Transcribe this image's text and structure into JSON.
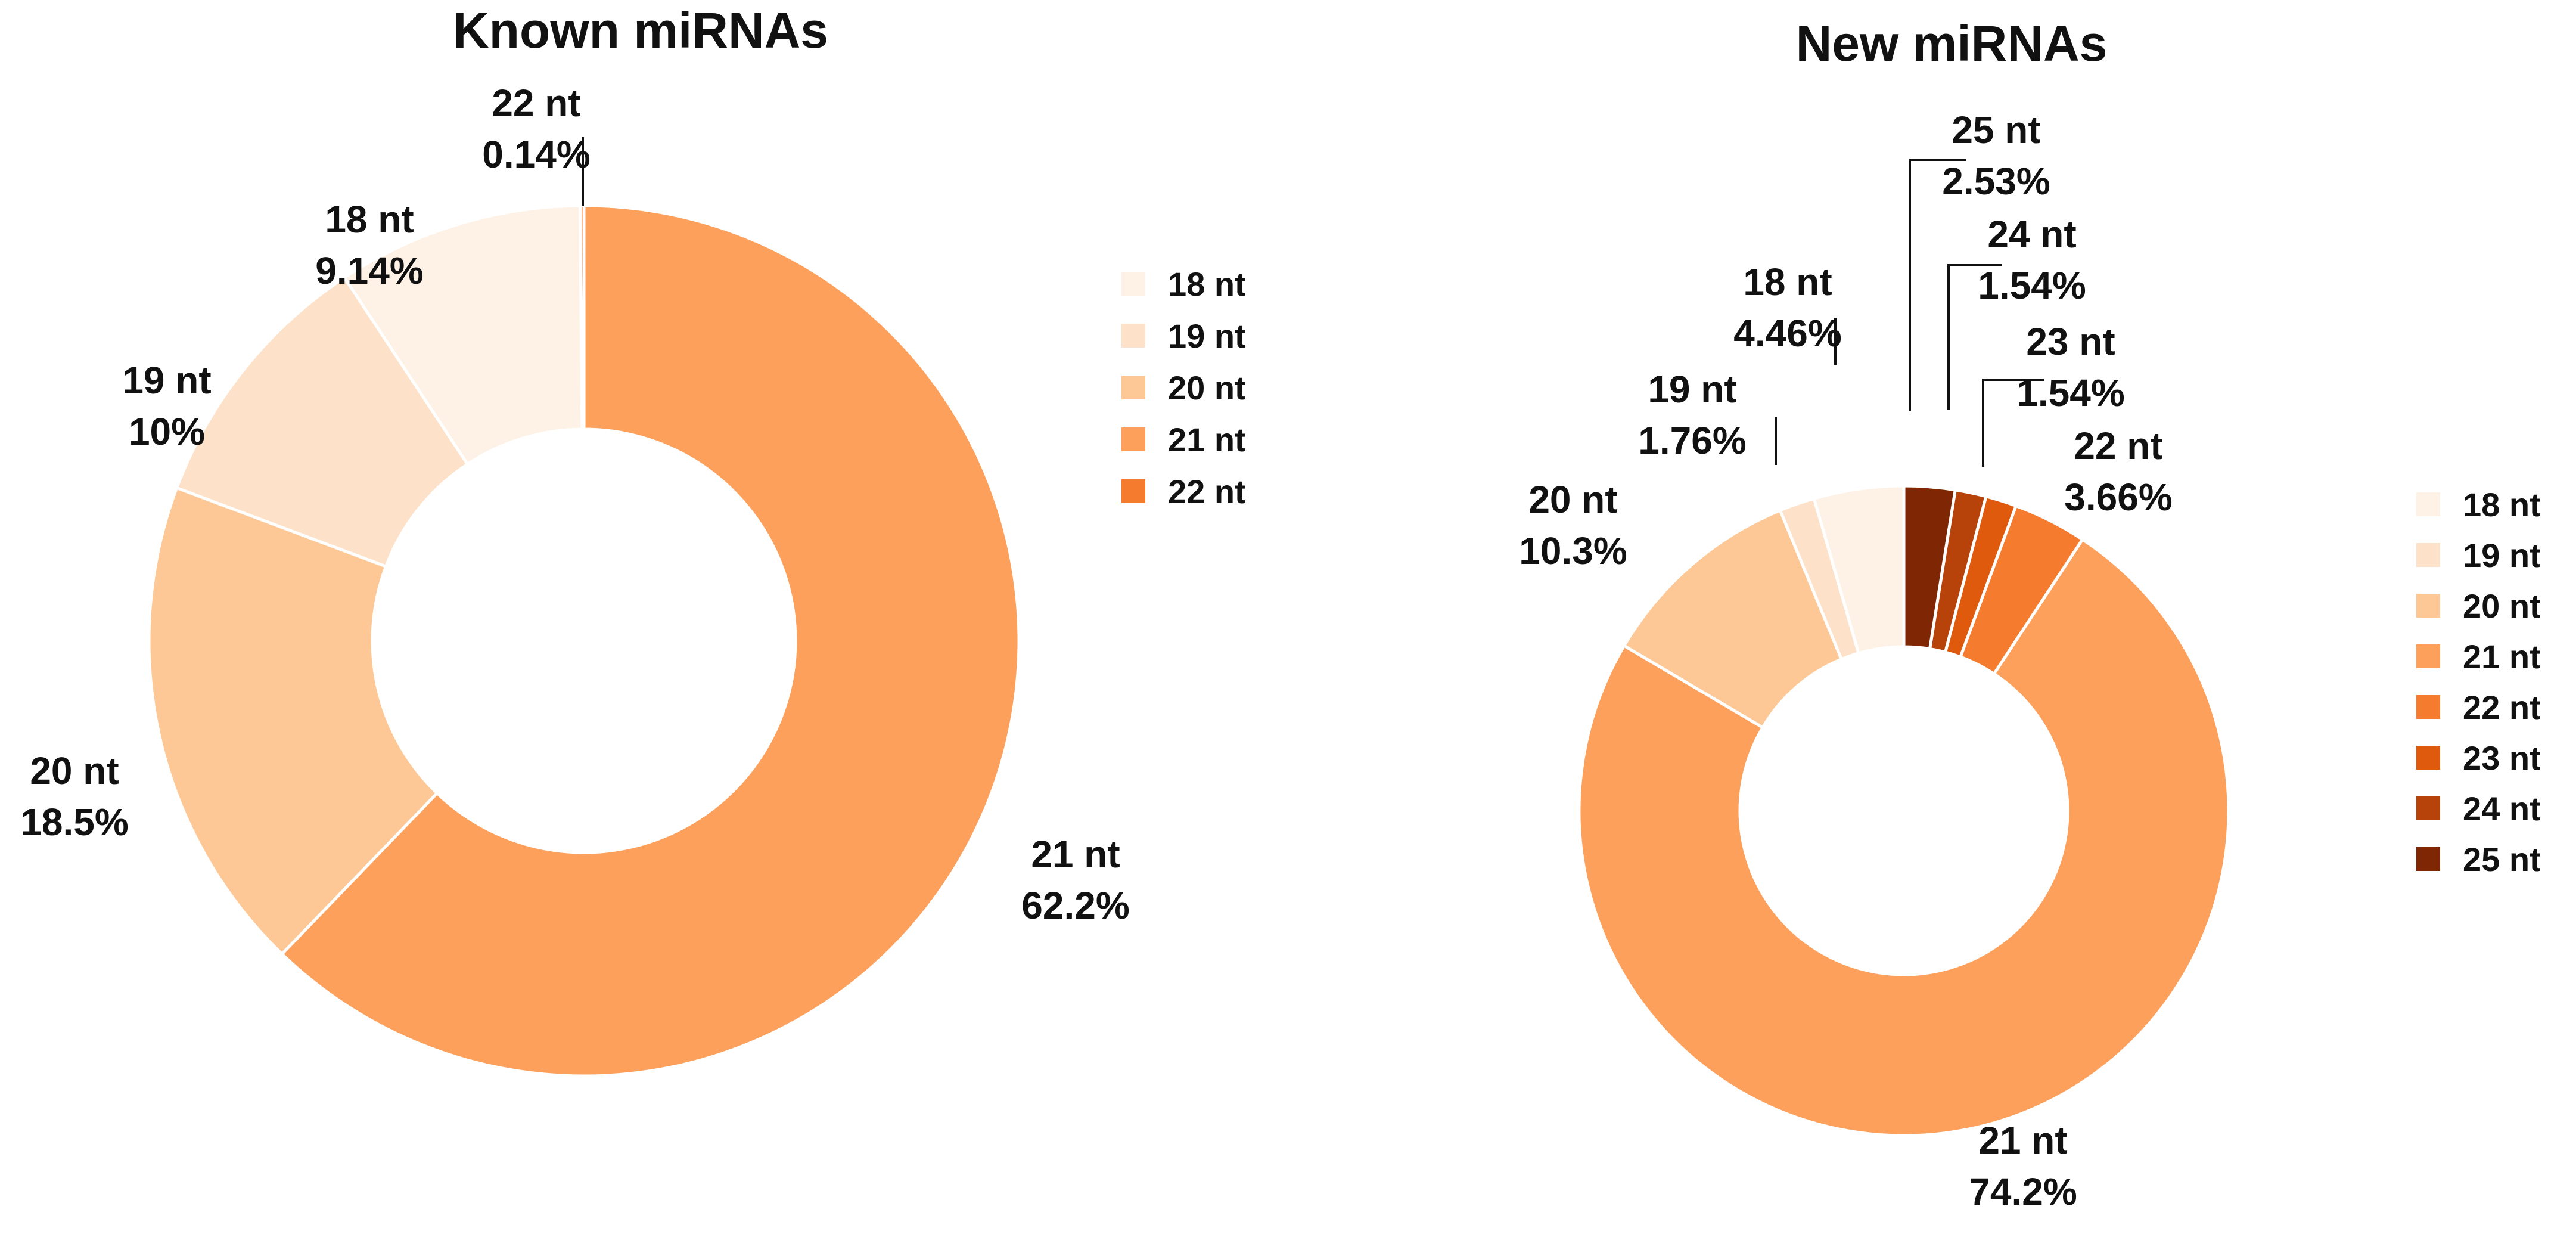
{
  "chart_data": [
    {
      "type": "pie",
      "title": "Known miRNAs",
      "slices": [
        {
          "label": "18 nt",
          "percent_label": "9.14%",
          "value": 9.14,
          "color": "#FEF2E6"
        },
        {
          "label": "19 nt",
          "percent_label": "10%",
          "value": 10.0,
          "color": "#FDE1C8"
        },
        {
          "label": "20 nt",
          "percent_label": "18.5%",
          "value": 18.5,
          "color": "#FDC895"
        },
        {
          "label": "21 nt",
          "percent_label": "62.2%",
          "value": 62.2,
          "color": "#FDA05C"
        },
        {
          "label": "22 nt",
          "percent_label": "0.14%",
          "value": 0.14,
          "color": "#F57B2F"
        }
      ],
      "legend": [
        "18 nt",
        "19 nt",
        "20 nt",
        "21 nt",
        "22 nt"
      ],
      "legend_position": "right"
    },
    {
      "type": "pie",
      "title": "New miRNAs",
      "slices": [
        {
          "label": "18 nt",
          "percent_label": "4.46%",
          "value": 4.46,
          "color": "#FEF2E6"
        },
        {
          "label": "19 nt",
          "percent_label": "1.76%",
          "value": 1.76,
          "color": "#FDE1C8"
        },
        {
          "label": "20 nt",
          "percent_label": "10.3%",
          "value": 10.3,
          "color": "#FDC895"
        },
        {
          "label": "21 nt",
          "percent_label": "74.2%",
          "value": 74.2,
          "color": "#FDA05C"
        },
        {
          "label": "22 nt",
          "percent_label": "3.66%",
          "value": 3.66,
          "color": "#F57B2F"
        },
        {
          "label": "23 nt",
          "percent_label": "1.54%",
          "value": 1.54,
          "color": "#E05A0E"
        },
        {
          "label": "24 nt",
          "percent_label": "1.54%",
          "value": 1.54,
          "color": "#B8430A"
        },
        {
          "label": "25 nt",
          "percent_label": "2.53%",
          "value": 2.53,
          "color": "#7F2704"
        }
      ],
      "legend": [
        "18 nt",
        "19 nt",
        "20 nt",
        "21 nt",
        "22 nt",
        "23 nt",
        "24 nt",
        "25 nt"
      ],
      "legend_position": "right"
    }
  ]
}
